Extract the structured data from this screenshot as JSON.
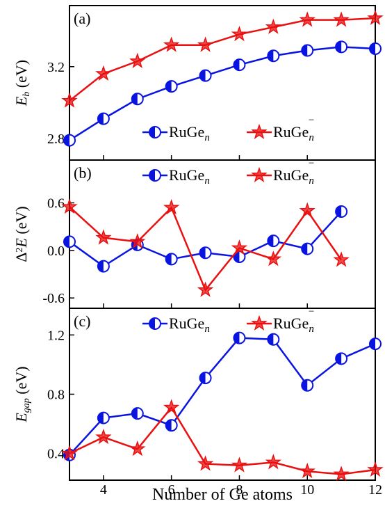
{
  "chart_data": [
    {
      "type": "line",
      "panel_label": "(a)",
      "y_label": [
        {
          "text": "E",
          "style": "italic"
        },
        {
          "text": "b",
          "style": "sub-italic"
        },
        {
          "text": " (eV)",
          "style": "normal"
        }
      ],
      "x": [
        3,
        4,
        5,
        6,
        7,
        8,
        9,
        10,
        11,
        12
      ],
      "xlim": [
        3,
        12
      ],
      "xticks": [
        4,
        6,
        8,
        10,
        12
      ],
      "ylim": [
        2.68,
        3.54
      ],
      "yticks": [
        2.8,
        3.2
      ],
      "legend": "bottom-right",
      "series": [
        {
          "name": "RuGe",
          "name_sub": "n",
          "marker": "half-circle",
          "color": "#0a14e0",
          "values": [
            2.79,
            2.91,
            3.02,
            3.09,
            3.15,
            3.21,
            3.26,
            3.29,
            3.31,
            3.3
          ]
        },
        {
          "name": "RuGe",
          "name_sub": "n",
          "name_sup": "−",
          "marker": "star",
          "color": "#e81010",
          "values": [
            3.01,
            3.16,
            3.23,
            3.32,
            3.32,
            3.38,
            3.42,
            3.46,
            3.46,
            3.47
          ]
        }
      ]
    },
    {
      "type": "line",
      "panel_label": "(b)",
      "y_label": [
        {
          "text": "Δ",
          "style": "normal"
        },
        {
          "text": "2",
          "style": "sup"
        },
        {
          "text": "E",
          "style": "italic"
        },
        {
          "text": " (eV)",
          "style": "normal"
        }
      ],
      "x": [
        3,
        4,
        5,
        6,
        7,
        8,
        9,
        10,
        11,
        12
      ],
      "xlim": [
        3,
        12
      ],
      "xticks": [
        4,
        6,
        8,
        10,
        12
      ],
      "ylim": [
        -0.73,
        1.14
      ],
      "yticks": [
        {
          "value": -0.6,
          "label": "-0.6"
        },
        {
          "value": 0,
          "label": "0.0"
        },
        0.6
      ],
      "legend": "top-right",
      "series": [
        {
          "name": "RuGe",
          "name_sub": "n",
          "marker": "half-circle",
          "color": "#0a14e0",
          "values": [
            0.11,
            -0.2,
            0.07,
            -0.11,
            -0.03,
            -0.08,
            0.12,
            0.02,
            0.49,
            null
          ]
        },
        {
          "name": "RuGe",
          "name_sub": "n",
          "name_sup": "−",
          "marker": "star",
          "color": "#e81010",
          "values": [
            0.55,
            0.16,
            0.11,
            0.54,
            -0.5,
            0.03,
            -0.11,
            0.5,
            -0.12,
            null
          ]
        }
      ]
    },
    {
      "type": "line",
      "panel_label": "(c)",
      "y_label": [
        {
          "text": "E",
          "style": "italic"
        },
        {
          "text": "gap",
          "style": "sub-italic"
        },
        {
          "text": " (eV)",
          "style": "normal"
        }
      ],
      "x_label": "Number of Ge atoms",
      "x": [
        3,
        4,
        5,
        6,
        7,
        8,
        9,
        10,
        11,
        12
      ],
      "xlim": [
        3,
        12
      ],
      "xticks": [
        4,
        6,
        8,
        10,
        12
      ],
      "ylim": [
        0.22,
        1.38
      ],
      "yticks": [
        0.4,
        0.8,
        1.2
      ],
      "legend": "top-right",
      "series": [
        {
          "name": "RuGe",
          "name_sub": "n",
          "marker": "half-circle",
          "color": "#0a14e0",
          "values": [
            0.39,
            0.64,
            0.67,
            0.59,
            0.91,
            1.18,
            1.17,
            0.86,
            1.04,
            1.14
          ]
        },
        {
          "name": "RuGe",
          "name_sub": "n",
          "name_sup": "−",
          "marker": "star",
          "color": "#e81010",
          "values": [
            0.4,
            0.51,
            0.43,
            0.71,
            0.33,
            0.32,
            0.34,
            0.28,
            0.26,
            0.29
          ]
        }
      ]
    }
  ]
}
